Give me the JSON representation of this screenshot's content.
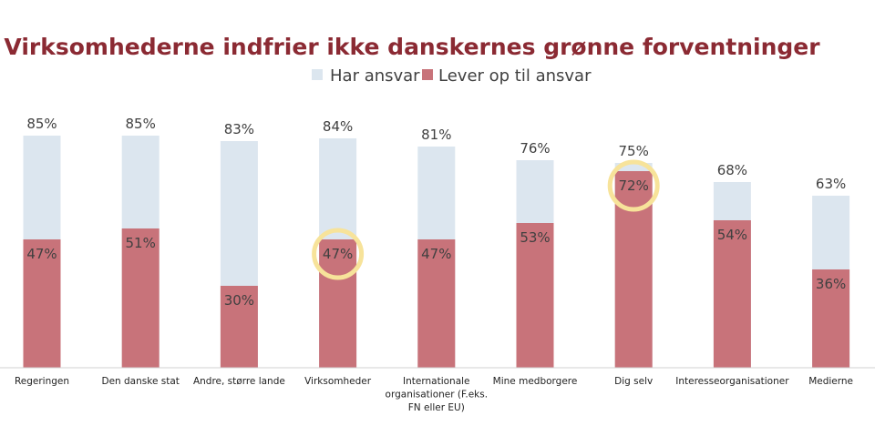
{
  "chart_data": {
    "type": "bar",
    "title": "Virksomhederne indfrier ikke danskernes grønne forventninger",
    "legend_position": "top",
    "grid": false,
    "ylim": [
      0,
      100
    ],
    "categories": [
      [
        "Regeringen"
      ],
      [
        "Den danske stat"
      ],
      [
        "Andre, større lande"
      ],
      [
        "Virksomheder"
      ],
      [
        "Internationale",
        "organisationer (F.eks.",
        "FN eller EU)"
      ],
      [
        "Mine medborgere"
      ],
      [
        "Dig selv"
      ],
      [
        "Interesseorganisationer"
      ],
      [
        "Medierne"
      ]
    ],
    "series": [
      {
        "name": "Har ansvar",
        "color": "#dce6ef",
        "values": [
          85,
          85,
          83,
          84,
          81,
          76,
          75,
          68,
          63
        ]
      },
      {
        "name": "Lever op til ansvar",
        "color": "#c8737a",
        "values": [
          47,
          51,
          30,
          47,
          47,
          53,
          72,
          54,
          36
        ]
      }
    ],
    "highlight": {
      "color": "#f7e39a",
      "series": "Lever op til ansvar",
      "categories": [
        "Virksomheder",
        "Dig selv"
      ]
    }
  }
}
